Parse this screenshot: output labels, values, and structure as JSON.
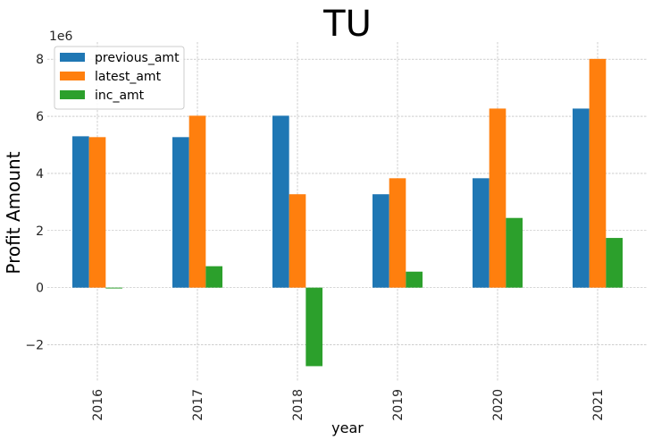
{
  "chart_data": {
    "type": "bar",
    "title": "TU",
    "xlabel": "year",
    "ylabel": "Profit Amount",
    "y_offset_label": "1e6",
    "y_scale": 1000000,
    "categories": [
      "2016",
      "2017",
      "2018",
      "2019",
      "2020",
      "2021"
    ],
    "series": [
      {
        "name": "previous_amt",
        "color": "#1f77b4",
        "values": [
          5300000,
          5270000,
          6020000,
          3270000,
          3830000,
          6270000
        ]
      },
      {
        "name": "latest_amt",
        "color": "#ff7f0e",
        "values": [
          5270000,
          6020000,
          3270000,
          3830000,
          6270000,
          8010000
        ]
      },
      {
        "name": "inc_amt",
        "color": "#2ca02c",
        "values": [
          -30000,
          750000,
          -2750000,
          560000,
          2440000,
          1740000
        ]
      }
    ],
    "yticks": [
      -2,
      0,
      2,
      4,
      6,
      8
    ],
    "ytick_labels": [
      "−2",
      "0",
      "2",
      "4",
      "6",
      "8"
    ],
    "ylim": [
      -3300000,
      8600000
    ],
    "grid": true,
    "legend_position": "top-left",
    "xtick_rotation": "vertical"
  }
}
